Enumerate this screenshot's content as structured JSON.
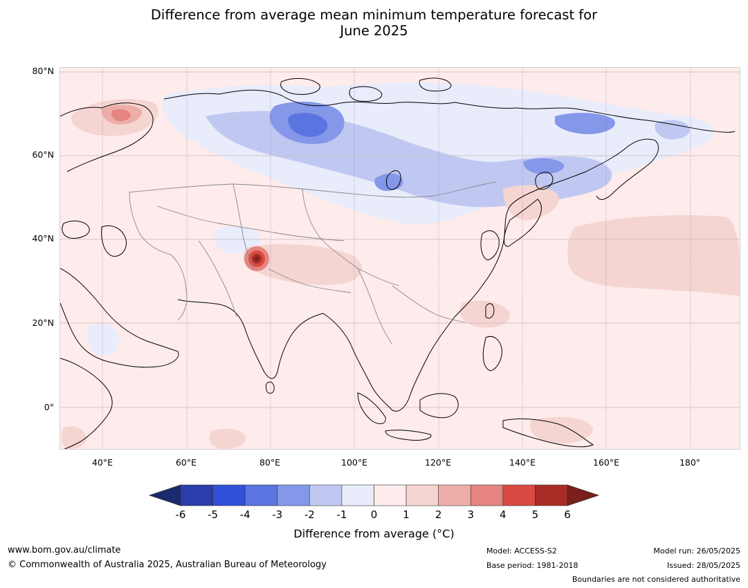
{
  "title": {
    "line1": "Difference from average mean minimum temperature forecast for",
    "line2": "June 2025"
  },
  "map": {
    "lat_labels": [
      "80°N",
      "60°N",
      "40°N",
      "20°N",
      "0°"
    ],
    "lon_labels": [
      "40°E",
      "60°E",
      "80°E",
      "100°E",
      "120°E",
      "140°E",
      "160°E",
      "180°"
    ],
    "extent": {
      "lon_min": 30,
      "lon_max": 191,
      "lat_min": -10,
      "lat_max": 81
    }
  },
  "colorbar": {
    "ticks": [
      "-6",
      "-5",
      "-4",
      "-3",
      "-2",
      "-1",
      "0",
      "1",
      "2",
      "3",
      "4",
      "5",
      "6"
    ],
    "label": "Difference from average (°C)",
    "colors": {
      "below": "#1a2a6e",
      "bins": [
        "#2a3daa",
        "#3050d8",
        "#5a74e0",
        "#8497e8",
        "#c0c8f2",
        "#e8ecfb",
        "#fdeceb",
        "#f5d5d2",
        "#edaeaa",
        "#e58480",
        "#d94a42",
        "#aa2c26"
      ],
      "above": "#7a1f1b"
    }
  },
  "footer": {
    "website": "www.bom.gov.au/climate",
    "copyright": "© Commonwealth of Australia 2025, Australian Bureau of Meteorology",
    "model": "Model: ACCESS-S2",
    "base_period": "Base period: 1981-2018",
    "model_run": "Model run: 26/05/2025",
    "issued": "Issued: 28/05/2025",
    "disclaimer": "Boundaries are not considered authoritative"
  }
}
